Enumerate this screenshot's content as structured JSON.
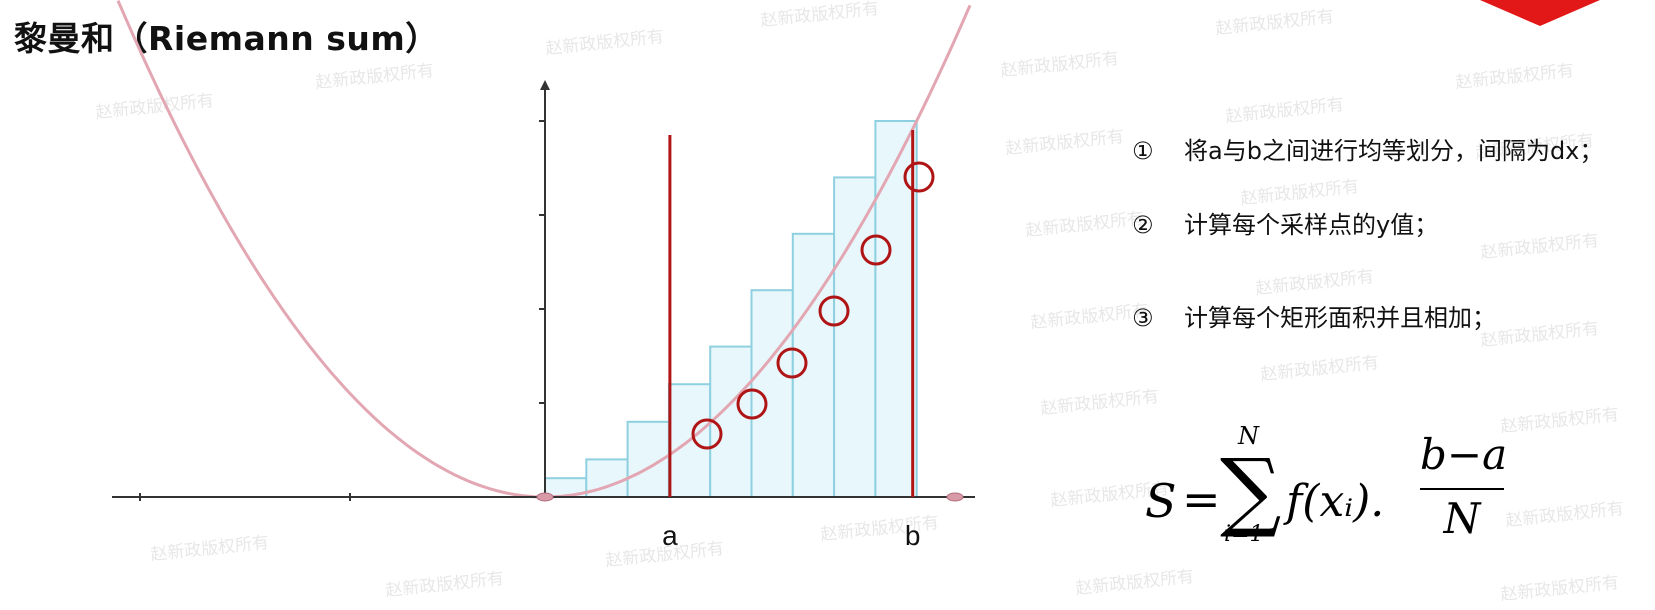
{
  "title": "黎曼和（Riemann sum）",
  "watermark_text": "赵新政版权所有",
  "axis_labels": {
    "a": "a",
    "b": "b"
  },
  "steps": [
    {
      "num": "①",
      "text": "将a与b之间进行均等划分，间隔为dx；"
    },
    {
      "num": "②",
      "text": "计算每个采样点的y值；"
    },
    {
      "num": "③",
      "text": "计算每个矩形面积并且相加；"
    }
  ],
  "formula": {
    "lhs": "S",
    "eq": "=",
    "sigma": "∑",
    "upper": "N",
    "lower": "i=1",
    "term": "f(xᵢ).",
    "numerator": "b−a",
    "denominator": "N"
  },
  "colors": {
    "curve": "#e2a7b3",
    "bar_fill": "#e8f7fc",
    "bar_stroke": "#8fd0e0",
    "marker": "#b01515",
    "axis": "#333333",
    "corner": "#e21818"
  },
  "chart_data": {
    "type": "bar",
    "function": "y = x^2",
    "bar_heights": [
      1,
      2,
      4,
      6,
      8,
      11,
      14,
      17,
      20
    ],
    "sample_point_bars": [
      3,
      4,
      5,
      6,
      7,
      8
    ],
    "a": 3,
    "b": 9,
    "y_ticks": [
      5,
      10,
      15,
      20
    ],
    "ylim": [
      0,
      21
    ]
  }
}
